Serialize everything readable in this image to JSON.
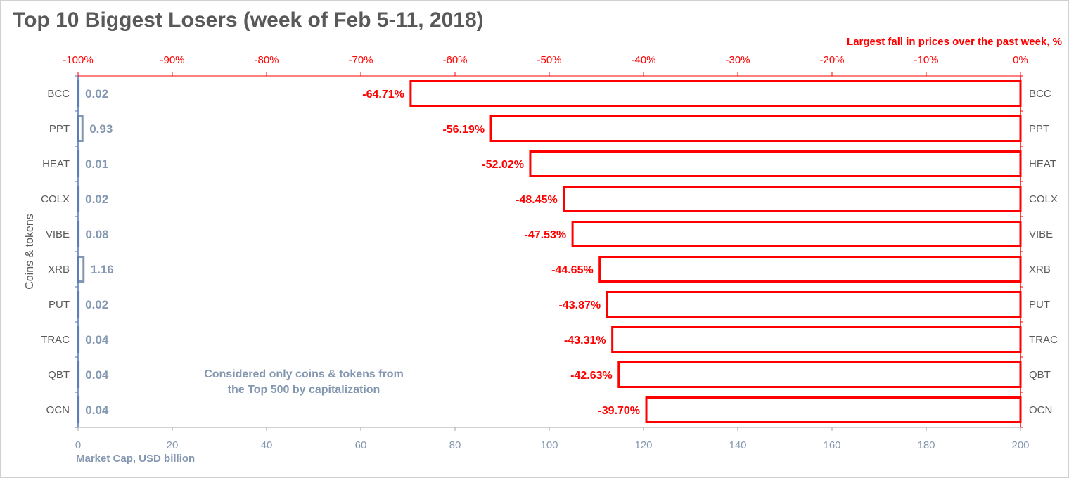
{
  "title": "Top 10 Biggest Losers (week of Feb 5-11, 2018)",
  "note": [
    "Considered only coins & tokens from",
    "the Top 500 by capitalization"
  ],
  "colors": {
    "price": "#ff0000",
    "cap": "#8497b0",
    "axis": "#4f73be",
    "text": "#595959"
  },
  "chart_data": {
    "type": "bar",
    "title": "Top 10 Biggest Losers (week of Feb 5-11, 2018)",
    "categories": [
      "BCC",
      "PPT",
      "HEAT",
      "COLX",
      "VIBE",
      "XRB",
      "PUT",
      "TRAC",
      "QBT",
      "OCN"
    ],
    "category_axis_label": "Coins & tokens",
    "series": [
      {
        "name": "Market Cap,  USD billion",
        "axis": "bottom",
        "values": [
          0.02,
          0.93,
          0.01,
          0.02,
          0.08,
          1.16,
          0.02,
          0.04,
          0.04,
          0.04
        ],
        "labels": [
          "0.02",
          "0.93",
          "0.01",
          "0.02",
          "0.08",
          "1.16",
          "0.02",
          "0.04",
          "0.04",
          "0.04"
        ]
      },
      {
        "name": "Largest fall in prices over the past week, %",
        "axis": "top",
        "values": [
          -64.71,
          -56.19,
          -52.02,
          -48.45,
          -47.53,
          -44.65,
          -43.87,
          -43.31,
          -42.63,
          -39.7
        ],
        "labels": [
          "-64.71%",
          "-56.19%",
          "-52.02%",
          "-48.45%",
          "-47.53%",
          "-44.65%",
          "-43.87%",
          "-43.31%",
          "-42.63%",
          "-39.70%"
        ]
      }
    ],
    "bottom_axis": {
      "label": "Market Cap,  USD billion",
      "range": [
        0,
        200
      ],
      "ticks": [
        "0",
        "20",
        "40",
        "60",
        "80",
        "100",
        "120",
        "140",
        "160",
        "180",
        "200"
      ]
    },
    "top_axis": {
      "label": "Largest fall in prices over the past week, %",
      "range": [
        -100,
        0
      ],
      "ticks": [
        "-100%",
        "-90%",
        "-80%",
        "-70%",
        "-60%",
        "-50%",
        "-40%",
        "-30%",
        "-20%",
        "-10%",
        "0%"
      ]
    },
    "grid": false,
    "legend": "none"
  }
}
